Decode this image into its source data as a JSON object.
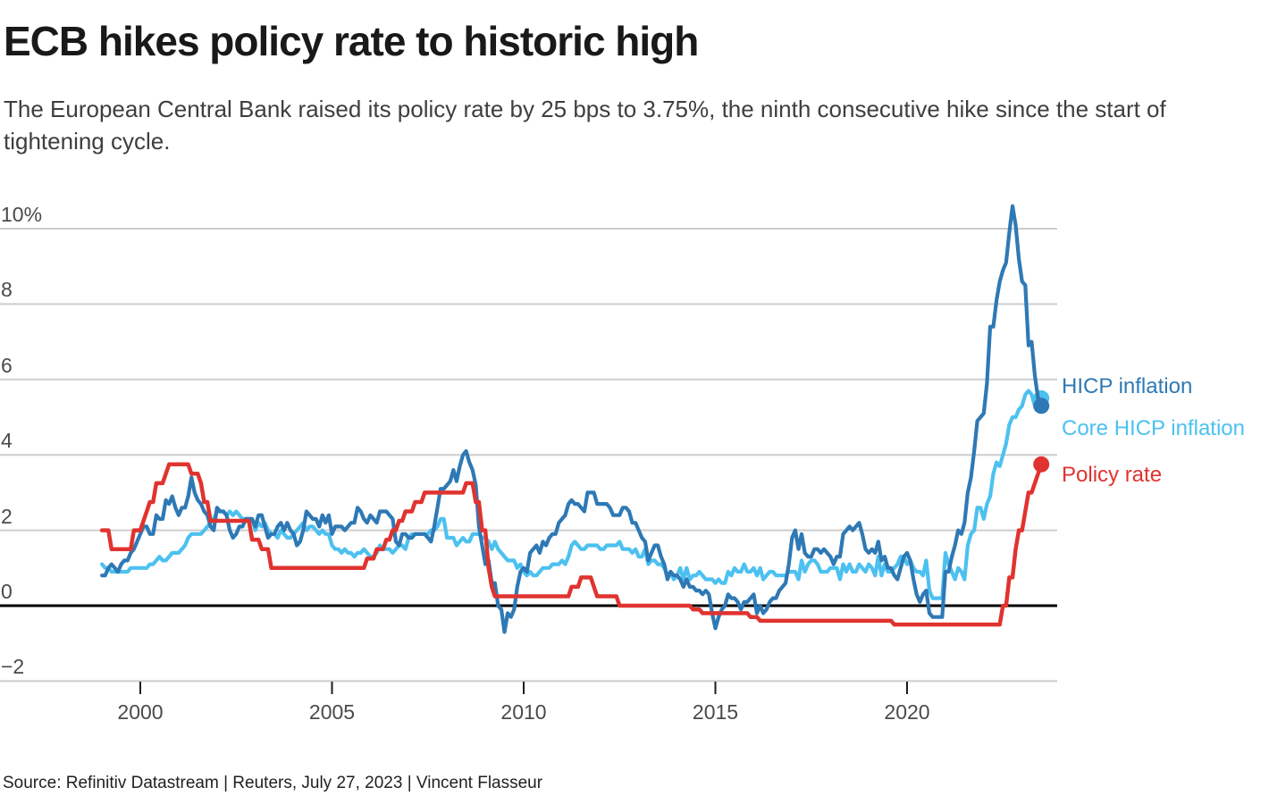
{
  "header": {
    "title": "ECB hikes policy rate to historic high",
    "subtitle": "The European Central Bank raised its policy rate by 25 bps to 3.75%, the ninth consecutive hike since the start of tightening cycle."
  },
  "footer": {
    "source": "Source: Refinitiv Datastream | Reuters, July 27, 2023 | Vincent Flasseur"
  },
  "colors": {
    "hicp_inflation": "#2e79b5",
    "core_hicp_inflation": "#4cc1f0",
    "policy_rate": "#e0332f",
    "gridline": "#cdcdcd",
    "zero_line": "#000000",
    "axis_text": "#4a4a4a"
  },
  "chart_data": {
    "type": "line",
    "title": "ECB hikes policy rate to historic high",
    "unit": "%",
    "frequency": "monthly",
    "start": "1999-01",
    "end": "2023-07",
    "legend_position": "right-end-labels",
    "y_axis": {
      "ticks": [
        10,
        8,
        6,
        4,
        2,
        0,
        -2
      ],
      "tick_labels": [
        "10%",
        "8",
        "6",
        "4",
        "2",
        "0",
        "−2"
      ],
      "range": [
        -2,
        10.7
      ],
      "grid": true
    },
    "x_axis": {
      "ticks": [
        2000,
        2005,
        2010,
        2015,
        2020
      ],
      "range_years": [
        1999.0,
        2023.58
      ]
    },
    "series": [
      {
        "name": "HICP inflation",
        "color": "#2e79b5",
        "last_value": 5.3,
        "values": [
          0.8,
          0.8,
          1.0,
          1.1,
          1.0,
          0.9,
          1.1,
          1.2,
          1.2,
          1.4,
          1.5,
          1.7,
          1.9,
          2.1,
          2.1,
          1.9,
          1.9,
          2.4,
          2.3,
          2.3,
          2.8,
          2.7,
          2.9,
          2.6,
          2.4,
          2.6,
          2.6,
          2.9,
          3.4,
          3.0,
          2.8,
          2.7,
          2.5,
          2.4,
          2.1,
          2.0,
          2.6,
          2.5,
          2.5,
          2.4,
          2.0,
          1.8,
          1.9,
          2.1,
          2.1,
          2.3,
          2.3,
          2.3,
          2.1,
          2.4,
          2.4,
          2.1,
          1.8,
          1.9,
          1.9,
          2.1,
          2.2,
          2.0,
          2.2,
          2.0,
          1.9,
          1.6,
          1.7,
          2.0,
          2.5,
          2.4,
          2.3,
          2.3,
          2.1,
          2.4,
          2.2,
          2.4,
          1.9,
          2.1,
          2.1,
          2.1,
          2.0,
          2.1,
          2.2,
          2.2,
          2.6,
          2.5,
          2.3,
          2.2,
          2.4,
          2.3,
          2.2,
          2.5,
          2.5,
          2.5,
          2.4,
          2.3,
          1.7,
          1.6,
          1.9,
          1.9,
          1.8,
          1.8,
          1.9,
          1.9,
          1.9,
          1.9,
          1.8,
          1.7,
          2.1,
          2.6,
          3.1,
          3.1,
          3.2,
          3.3,
          3.6,
          3.3,
          3.7,
          4.0,
          4.1,
          3.8,
          3.6,
          3.2,
          2.1,
          1.6,
          1.1,
          1.2,
          0.6,
          0.6,
          0.0,
          -0.1,
          -0.7,
          -0.2,
          -0.3,
          -0.1,
          0.5,
          0.9,
          1.0,
          0.9,
          1.4,
          1.5,
          1.6,
          1.4,
          1.7,
          1.6,
          1.8,
          1.9,
          1.9,
          2.2,
          2.3,
          2.4,
          2.7,
          2.8,
          2.7,
          2.7,
          2.6,
          2.5,
          3.0,
          3.0,
          3.0,
          2.7,
          2.7,
          2.7,
          2.7,
          2.6,
          2.4,
          2.4,
          2.4,
          2.6,
          2.6,
          2.5,
          2.2,
          2.2,
          2.0,
          1.8,
          1.7,
          1.2,
          1.4,
          1.6,
          1.6,
          1.3,
          1.1,
          0.7,
          0.9,
          0.8,
          0.8,
          0.7,
          0.5,
          0.7,
          0.5,
          0.5,
          0.4,
          0.4,
          0.3,
          0.4,
          0.3,
          -0.2,
          -0.6,
          -0.3,
          -0.1,
          0.0,
          0.3,
          0.2,
          0.2,
          0.1,
          -0.1,
          0.1,
          0.1,
          0.2,
          0.3,
          -0.2,
          0.0,
          -0.2,
          -0.1,
          0.1,
          0.2,
          0.2,
          0.4,
          0.5,
          0.6,
          1.1,
          1.8,
          2.0,
          1.5,
          1.9,
          1.4,
          1.3,
          1.3,
          1.5,
          1.5,
          1.4,
          1.5,
          1.4,
          1.3,
          1.1,
          1.3,
          1.3,
          1.9,
          2.0,
          2.1,
          2.0,
          2.1,
          2.2,
          1.9,
          1.5,
          1.4,
          1.5,
          1.4,
          1.7,
          1.2,
          1.3,
          1.0,
          1.0,
          0.8,
          0.7,
          1.0,
          1.3,
          1.4,
          1.2,
          0.7,
          0.3,
          0.1,
          0.3,
          0.4,
          -0.2,
          -0.3,
          -0.3,
          -0.3,
          -0.3,
          0.9,
          0.9,
          1.3,
          1.6,
          2.0,
          1.9,
          2.2,
          3.0,
          3.4,
          4.1,
          4.9,
          5.0,
          5.1,
          5.9,
          7.4,
          7.4,
          8.1,
          8.6,
          8.9,
          9.1,
          9.9,
          10.6,
          10.1,
          9.2,
          8.6,
          8.5,
          6.9,
          7.0,
          6.1,
          5.5,
          5.3
        ]
      },
      {
        "name": "Core HICP inflation",
        "color": "#4cc1f0",
        "last_value": 5.5,
        "values": [
          1.1,
          1.0,
          1.0,
          0.9,
          0.9,
          0.9,
          0.9,
          0.9,
          0.9,
          1.0,
          1.0,
          1.0,
          1.0,
          1.0,
          1.0,
          1.1,
          1.1,
          1.2,
          1.3,
          1.2,
          1.2,
          1.3,
          1.4,
          1.4,
          1.4,
          1.5,
          1.6,
          1.8,
          1.9,
          1.9,
          1.9,
          1.9,
          2.0,
          2.1,
          2.2,
          2.3,
          2.5,
          2.5,
          2.5,
          2.4,
          2.5,
          2.4,
          2.5,
          2.4,
          2.3,
          2.3,
          2.3,
          2.3,
          2.0,
          2.2,
          2.1,
          2.2,
          2.0,
          1.9,
          1.9,
          1.8,
          2.0,
          1.9,
          1.8,
          1.8,
          1.9,
          2.0,
          2.1,
          2.2,
          2.0,
          2.1,
          2.1,
          2.0,
          1.9,
          2.0,
          1.9,
          1.9,
          1.6,
          1.5,
          1.5,
          1.4,
          1.5,
          1.4,
          1.4,
          1.3,
          1.4,
          1.4,
          1.5,
          1.4,
          1.3,
          1.3,
          1.4,
          1.6,
          1.5,
          1.5,
          1.5,
          1.4,
          1.5,
          1.6,
          1.6,
          1.5,
          1.8,
          1.9,
          1.9,
          1.9,
          1.9,
          1.9,
          1.9,
          2.0,
          2.0,
          2.1,
          2.3,
          2.3,
          1.8,
          1.8,
          1.8,
          1.6,
          1.7,
          1.8,
          1.7,
          1.7,
          1.9,
          1.9,
          1.9,
          1.8,
          1.8,
          1.7,
          1.5,
          1.7,
          1.5,
          1.4,
          1.3,
          1.2,
          1.2,
          1.2,
          1.0,
          1.1,
          0.9,
          0.8,
          0.9,
          0.8,
          0.8,
          0.9,
          1.0,
          1.0,
          1.0,
          1.1,
          1.1,
          1.1,
          1.2,
          1.1,
          1.3,
          1.6,
          1.7,
          1.6,
          1.5,
          1.5,
          1.6,
          1.6,
          1.6,
          1.6,
          1.5,
          1.5,
          1.6,
          1.6,
          1.6,
          1.6,
          1.7,
          1.5,
          1.5,
          1.5,
          1.4,
          1.5,
          1.3,
          1.3,
          1.5,
          1.1,
          1.2,
          1.2,
          1.1,
          1.1,
          1.0,
          0.8,
          0.9,
          0.7,
          0.8,
          1.0,
          0.7,
          1.0,
          0.7,
          0.8,
          0.8,
          0.9,
          0.8,
          0.7,
          0.7,
          0.7,
          0.6,
          0.7,
          0.6,
          0.6,
          0.9,
          0.8,
          1.0,
          0.9,
          0.9,
          1.1,
          0.9,
          0.9,
          1.0,
          0.8,
          1.0,
          0.7,
          0.8,
          0.9,
          0.9,
          0.8,
          0.8,
          0.8,
          0.8,
          0.9,
          0.9,
          0.9,
          0.7,
          1.2,
          0.9,
          1.1,
          1.2,
          1.2,
          1.1,
          0.9,
          0.9,
          0.9,
          1.0,
          1.0,
          1.0,
          0.7,
          1.1,
          0.9,
          1.1,
          0.9,
          0.9,
          1.1,
          1.0,
          0.9,
          1.1,
          1.0,
          0.8,
          1.3,
          0.8,
          1.1,
          0.9,
          0.9,
          1.0,
          1.1,
          1.3,
          1.3,
          1.1,
          1.2,
          1.0,
          0.9,
          0.9,
          0.8,
          1.2,
          0.4,
          0.2,
          0.2,
          0.2,
          0.2,
          1.4,
          1.1,
          0.9,
          0.7,
          1.0,
          0.9,
          0.7,
          1.6,
          1.9,
          2.0,
          2.6,
          2.6,
          2.3,
          2.7,
          2.9,
          3.5,
          3.8,
          3.7,
          4.0,
          4.3,
          4.8,
          5.0,
          5.0,
          5.2,
          5.3,
          5.6,
          5.7,
          5.6,
          5.3,
          5.5,
          5.5
        ]
      },
      {
        "name": "Policy rate",
        "color": "#e0332f",
        "last_value": 3.75,
        "values": [
          2.0,
          2.0,
          2.0,
          1.5,
          1.5,
          1.5,
          1.5,
          1.5,
          1.5,
          1.5,
          2.0,
          2.0,
          2.0,
          2.25,
          2.5,
          2.75,
          2.75,
          3.25,
          3.25,
          3.25,
          3.5,
          3.75,
          3.75,
          3.75,
          3.75,
          3.75,
          3.75,
          3.75,
          3.5,
          3.5,
          3.5,
          3.25,
          2.75,
          2.75,
          2.25,
          2.25,
          2.25,
          2.25,
          2.25,
          2.25,
          2.25,
          2.25,
          2.25,
          2.25,
          2.25,
          2.25,
          2.25,
          1.75,
          1.75,
          1.75,
          1.5,
          1.5,
          1.5,
          1.0,
          1.0,
          1.0,
          1.0,
          1.0,
          1.0,
          1.0,
          1.0,
          1.0,
          1.0,
          1.0,
          1.0,
          1.0,
          1.0,
          1.0,
          1.0,
          1.0,
          1.0,
          1.0,
          1.0,
          1.0,
          1.0,
          1.0,
          1.0,
          1.0,
          1.0,
          1.0,
          1.0,
          1.0,
          1.0,
          1.25,
          1.25,
          1.25,
          1.5,
          1.5,
          1.5,
          1.75,
          1.75,
          2.0,
          2.0,
          2.25,
          2.25,
          2.5,
          2.5,
          2.5,
          2.75,
          2.75,
          2.75,
          3.0,
          3.0,
          3.0,
          3.0,
          3.0,
          3.0,
          3.0,
          3.0,
          3.0,
          3.0,
          3.0,
          3.0,
          3.0,
          3.25,
          3.25,
          3.25,
          2.75,
          2.75,
          2.0,
          2.0,
          1.0,
          0.5,
          0.25,
          0.25,
          0.25,
          0.25,
          0.25,
          0.25,
          0.25,
          0.25,
          0.25,
          0.25,
          0.25,
          0.25,
          0.25,
          0.25,
          0.25,
          0.25,
          0.25,
          0.25,
          0.25,
          0.25,
          0.25,
          0.25,
          0.25,
          0.25,
          0.5,
          0.5,
          0.5,
          0.75,
          0.75,
          0.75,
          0.75,
          0.5,
          0.25,
          0.25,
          0.25,
          0.25,
          0.25,
          0.25,
          0.25,
          0.0,
          0.0,
          0.0,
          0.0,
          0.0,
          0.0,
          0.0,
          0.0,
          0.0,
          0.0,
          0.0,
          0.0,
          0.0,
          0.0,
          0.0,
          0.0,
          0.0,
          0.0,
          0.0,
          0.0,
          0.0,
          0.0,
          0.0,
          -0.1,
          -0.1,
          -0.1,
          -0.2,
          -0.2,
          -0.2,
          -0.2,
          -0.2,
          -0.2,
          -0.2,
          -0.2,
          -0.2,
          -0.2,
          -0.2,
          -0.2,
          -0.2,
          -0.2,
          -0.2,
          -0.3,
          -0.3,
          -0.3,
          -0.4,
          -0.4,
          -0.4,
          -0.4,
          -0.4,
          -0.4,
          -0.4,
          -0.4,
          -0.4,
          -0.4,
          -0.4,
          -0.4,
          -0.4,
          -0.4,
          -0.4,
          -0.4,
          -0.4,
          -0.4,
          -0.4,
          -0.4,
          -0.4,
          -0.4,
          -0.4,
          -0.4,
          -0.4,
          -0.4,
          -0.4,
          -0.4,
          -0.4,
          -0.4,
          -0.4,
          -0.4,
          -0.4,
          -0.4,
          -0.4,
          -0.4,
          -0.4,
          -0.4,
          -0.4,
          -0.4,
          -0.4,
          -0.4,
          -0.5,
          -0.5,
          -0.5,
          -0.5,
          -0.5,
          -0.5,
          -0.5,
          -0.5,
          -0.5,
          -0.5,
          -0.5,
          -0.5,
          -0.5,
          -0.5,
          -0.5,
          -0.5,
          -0.5,
          -0.5,
          -0.5,
          -0.5,
          -0.5,
          -0.5,
          -0.5,
          -0.5,
          -0.5,
          -0.5,
          -0.5,
          -0.5,
          -0.5,
          -0.5,
          -0.5,
          -0.5,
          -0.5,
          -0.5,
          0.0,
          0.0,
          0.75,
          0.75,
          1.5,
          2.0,
          2.0,
          2.5,
          3.0,
          3.0,
          3.25,
          3.5,
          3.75
        ]
      }
    ]
  }
}
